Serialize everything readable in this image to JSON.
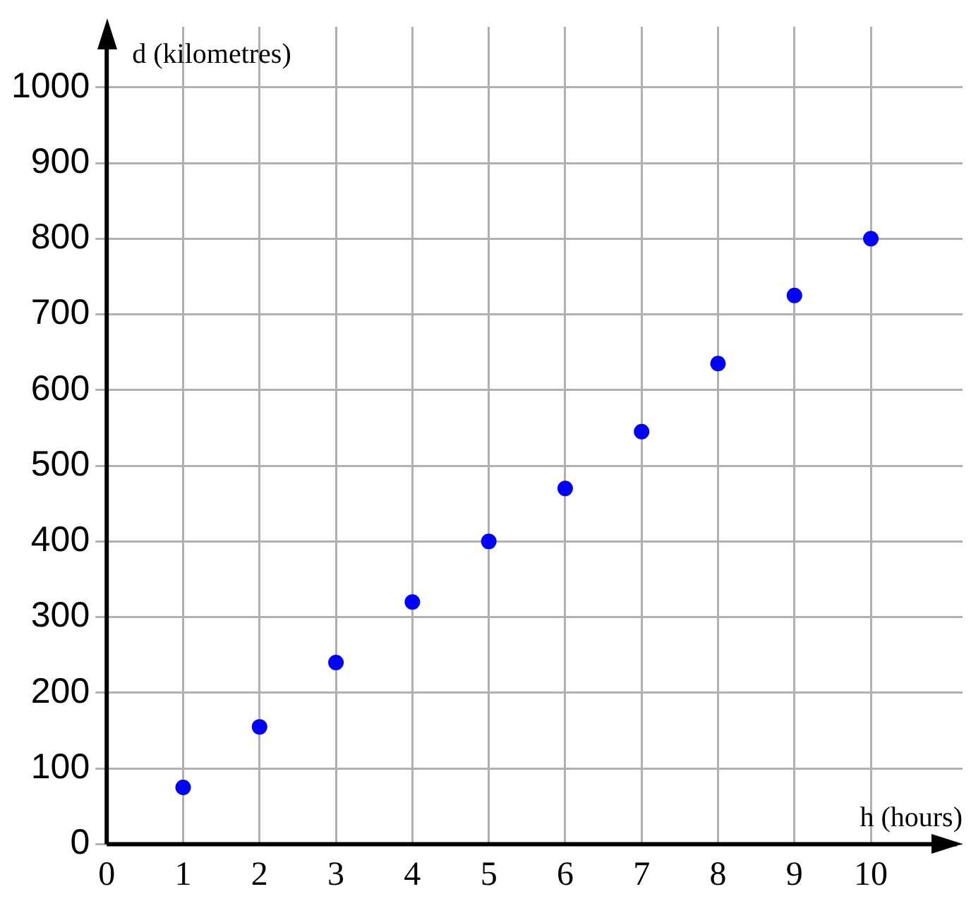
{
  "chart_data": {
    "type": "scatter",
    "xlabel": "h (hours)",
    "ylabel": "d (kilometres)",
    "x": [
      1,
      2,
      3,
      4,
      5,
      6,
      7,
      8,
      9,
      10
    ],
    "series": [
      {
        "color": "#0000ff",
        "values": [
          75,
          155,
          240,
          320,
          400,
          470,
          545,
          635,
          725,
          800
        ]
      }
    ],
    "xlim": [
      0,
      11.2
    ],
    "ylim": [
      0,
      1080
    ],
    "xticks": [
      0,
      1,
      2,
      3,
      4,
      5,
      6,
      7,
      8,
      9,
      10
    ],
    "yticks": [
      0,
      100,
      200,
      300,
      400,
      500,
      600,
      700,
      800,
      900,
      1000
    ],
    "grid": true,
    "legend": false,
    "marker": "circle"
  }
}
